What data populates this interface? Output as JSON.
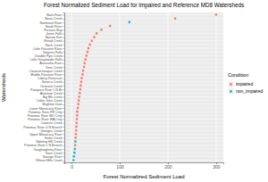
{
  "chart_data": {
    "type": "scatter",
    "title": "Forest Normalized Sediment Load for Impaired and Reference MD8 Watersheds",
    "x_label": "Forest Normalized Sediment Load",
    "y_label": "Watersheds",
    "legend_title": "Condition",
    "legend": "right",
    "grid": true,
    "categories": [
      "Back River",
      "Swan Creek",
      "Northeast River",
      "South River",
      "Furnace Bay",
      "Jones Falls",
      "Bynum Run",
      "Broad Creek",
      "Rock Creek",
      "Little Patuxent River",
      "Gwynns Falls",
      "Double Pipe Creek",
      "Little Gunpowder Falls",
      "Anacostia River",
      "Deer Creek",
      "Conococheague Creek",
      "Middle Patuxent River",
      "Liberty Reservoir",
      "Seneca Creek",
      "Octoraro Creek",
      "Patapsco River L N Br",
      "Antietam Creek",
      "Big Elk Creek",
      "Cabin John Creek",
      "Brighton Dam",
      "Lower Monocacy River",
      "Potomac River FR Cnty",
      "Potomac River MO Cnty",
      "Potomac River WA Cnty",
      "Catoctin Creek",
      "Potomac River U N Branch",
      "Georges Creek",
      "Upper Monocacy River",
      "Evitts Creek",
      "Sideling Hill Creek",
      "Potomac River L N Branch",
      "Youghiogheny River",
      "Town Creek",
      "Savage River",
      "Fifteen Mile Creek"
    ],
    "series": [
      {
        "name": "impaired",
        "color": "#F8766D",
        "marker": "circle",
        "values": [
          300,
          215,
          null,
          80,
          62,
          52,
          47,
          42,
          38,
          35,
          33,
          31,
          29,
          27,
          26,
          24,
          23,
          21,
          20,
          19,
          18,
          17,
          16,
          15,
          14,
          13,
          12,
          11.5,
          11,
          10.5,
          10,
          9.5,
          9,
          8.5,
          null,
          7.5,
          null,
          null,
          null,
          null
        ]
      },
      {
        "name": "non_impaired",
        "color": "#00BFC4",
        "marker": "circle",
        "values": [
          null,
          null,
          120,
          null,
          null,
          null,
          null,
          null,
          null,
          null,
          null,
          null,
          null,
          null,
          null,
          null,
          null,
          null,
          null,
          null,
          null,
          null,
          null,
          null,
          null,
          null,
          null,
          null,
          null,
          null,
          null,
          null,
          null,
          null,
          8,
          null,
          7,
          6,
          5,
          4
        ]
      }
    ],
    "xlim": [
      -15,
      315
    ],
    "xticks": [
      0,
      100,
      200,
      300
    ]
  }
}
